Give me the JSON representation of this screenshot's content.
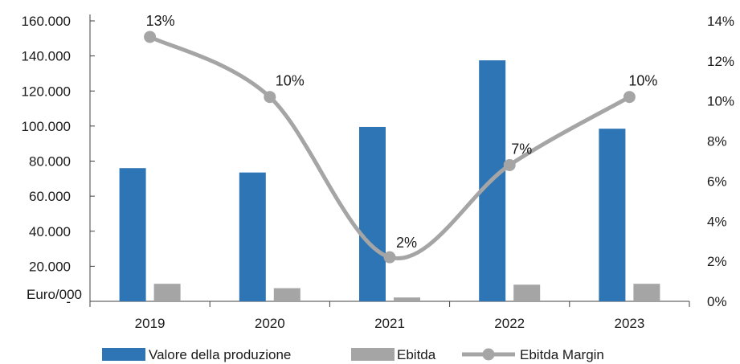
{
  "chart_data": {
    "type": "bar",
    "categories": [
      "2019",
      "2020",
      "2021",
      "2022",
      "2023"
    ],
    "series": [
      {
        "name": "Valore della produzione",
        "type": "bar",
        "axis": "left",
        "color": "#2e75b6",
        "values": [
          76000,
          73500,
          99500,
          137500,
          98500
        ]
      },
      {
        "name": "Ebitda",
        "type": "bar",
        "axis": "left",
        "color": "#a5a5a5",
        "values": [
          10000,
          7500,
          2200,
          9500,
          10000
        ]
      },
      {
        "name": "Ebitda Margin",
        "type": "line",
        "axis": "right",
        "color": "#a5a5a5",
        "values": [
          13.2,
          10.2,
          2.2,
          6.8,
          10.2
        ],
        "labels": [
          "13%",
          "10%",
          "2%",
          "7%",
          "10%"
        ]
      }
    ],
    "y_left": {
      "ylim": [
        0,
        160000
      ],
      "ticks": [
        "-",
        "20.000",
        "40.000",
        "60.000",
        "80.000",
        "100.000",
        "120.000",
        "140.000",
        "160.000"
      ],
      "unit_label": "Euro/000"
    },
    "y_right": {
      "ylim": [
        0,
        14
      ],
      "ticks": [
        "0%",
        "2%",
        "4%",
        "6%",
        "8%",
        "10%",
        "12%",
        "14%"
      ]
    },
    "legend_position": "bottom",
    "grid": false
  }
}
